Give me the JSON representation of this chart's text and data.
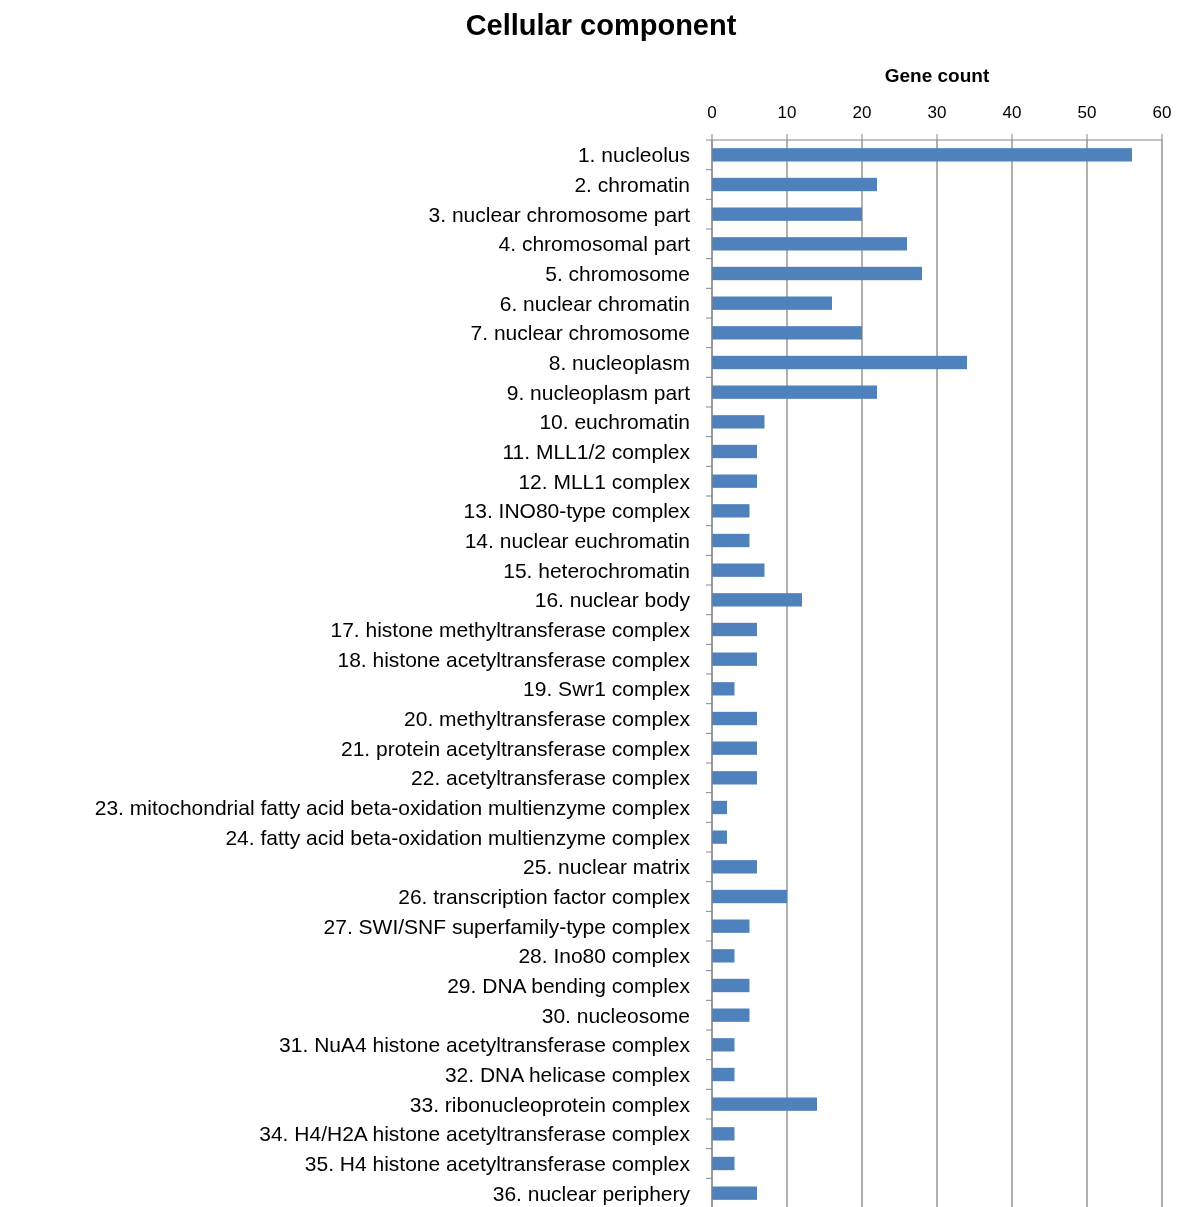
{
  "chart_data": {
    "type": "bar",
    "orientation": "horizontal",
    "title": "Cellular component",
    "xlabel": "Gene count",
    "categories": [
      "1. nucleolus",
      "2. chromatin",
      "3. nuclear chromosome part",
      "4. chromosomal part",
      "5. chromosome",
      "6. nuclear chromatin",
      "7. nuclear chromosome",
      "8. nucleoplasm",
      "9. nucleoplasm part",
      "10. euchromatin",
      "11. MLL1/2 complex",
      "12. MLL1 complex",
      "13. INO80-type complex",
      "14. nuclear euchromatin",
      "15. heterochromatin",
      "16. nuclear body",
      "17. histone methyltransferase complex",
      "18. histone acetyltransferase complex",
      "19. Swr1 complex",
      "20. methyltransferase complex",
      "21. protein acetyltransferase complex",
      "22. acetyltransferase complex",
      "23. mitochondrial fatty acid beta-oxidation multienzyme complex",
      "24. fatty acid beta-oxidation multienzyme complex",
      "25. nuclear matrix",
      "26. transcription factor complex",
      "27. SWI/SNF superfamily-type complex",
      "28. Ino80 complex",
      "29. DNA bending complex",
      "30. nucleosome",
      "31. NuA4 histone acetyltransferase complex",
      "32. DNA helicase complex",
      "33. ribonucleoprotein complex",
      "34. H4/H2A histone acetyltransferase complex",
      "35. H4 histone acetyltransferase complex",
      "36. nuclear periphery"
    ],
    "values": [
      56,
      22,
      20,
      26,
      28,
      16,
      20,
      34,
      22,
      7,
      6,
      6,
      5,
      5,
      7,
      12,
      6,
      6,
      3,
      6,
      6,
      6,
      2,
      2,
      6,
      10,
      5,
      3,
      5,
      5,
      3,
      3,
      14,
      3,
      3,
      6
    ],
    "color": "#4f81bd",
    "xlim": [
      0,
      60
    ],
    "xticks": [
      0,
      10,
      20,
      30,
      40,
      50,
      60
    ],
    "grid": "x"
  }
}
